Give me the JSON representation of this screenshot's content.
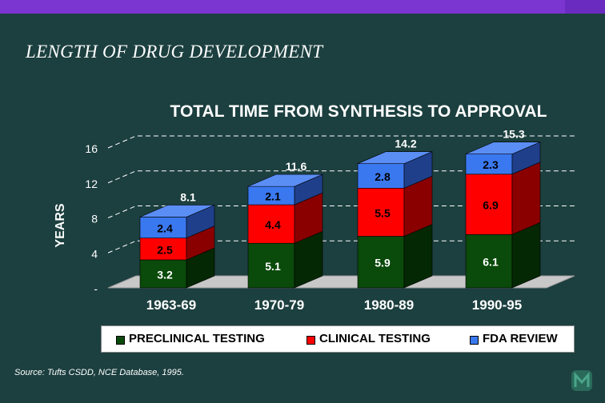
{
  "slide": {
    "title": "LENGTH OF DRUG DEVELOPMENT",
    "source": "Source: Tufts CSDD, NCE Database, 1995."
  },
  "colors": {
    "background": "#1c3f3f",
    "preclinical": "#0a4a0a",
    "clinical": "#ff0000",
    "fda": "#3a78f0"
  },
  "chart_data": {
    "type": "bar",
    "stacked": true,
    "title": "TOTAL TIME FROM SYNTHESIS TO APPROVAL",
    "xlabel": "",
    "ylabel": "YEARS",
    "ylim": [
      0,
      16
    ],
    "yticks": [
      "-",
      "4",
      "8",
      "12",
      "16"
    ],
    "grid": true,
    "legend_position": "bottom",
    "categories": [
      "1963-69",
      "1970-79",
      "1980-89",
      "1990-95"
    ],
    "series": [
      {
        "name": "PRECLINICAL TESTING",
        "values": [
          3.2,
          5.1,
          5.9,
          6.1
        ]
      },
      {
        "name": "CLINICAL TESTING",
        "values": [
          2.5,
          4.4,
          5.5,
          6.9
        ]
      },
      {
        "name": "FDA REVIEW",
        "values": [
          2.4,
          2.1,
          2.8,
          2.3
        ]
      }
    ],
    "totals": [
      8.1,
      11.6,
      14.2,
      15.3
    ]
  }
}
